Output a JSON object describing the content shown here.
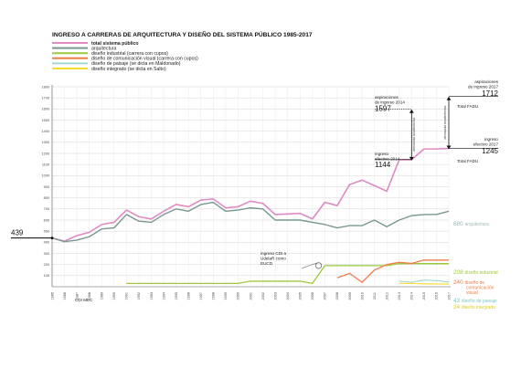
{
  "chart_data": {
    "type": "line",
    "title": "INGRESO A CARRERAS DE ARQUITECTURA Y DISEÑO DEL SISTEMA PÚBLICO 1985-2017",
    "xlabel": "",
    "ylabel": "",
    "ylim": [
      0,
      1800
    ],
    "yticks": [
      100,
      200,
      300,
      400,
      500,
      600,
      700,
      800,
      900,
      1000,
      1100,
      1200,
      1300,
      1400,
      1500,
      1600,
      1700,
      1800
    ],
    "x": [
      "1985",
      "1986",
      "1987",
      "1988",
      "1989",
      "1990",
      "1991",
      "1992",
      "1993",
      "1994",
      "1995",
      "1996",
      "1997",
      "1998",
      "1999",
      "2000",
      "2001",
      "2002",
      "2003",
      "2004",
      "2005",
      "2006",
      "2007",
      "2008",
      "2009",
      "2010",
      "2011",
      "2012",
      "2013",
      "2014",
      "2015",
      "2016",
      "2017"
    ],
    "grid": true,
    "legend_position": "top-left",
    "series": [
      {
        "name": "total sistema público",
        "color": "#e089c3",
        "width": 1.6,
        "values": [
          439,
          410,
          460,
          490,
          560,
          580,
          690,
          630,
          610,
          680,
          740,
          720,
          780,
          790,
          710,
          720,
          770,
          750,
          650,
          655,
          660,
          610,
          760,
          730,
          920,
          960,
          910,
          860,
          1144,
          1144,
          1240,
          1240,
          1245
        ]
      },
      {
        "name": "arquitectura",
        "color": "#7a9692",
        "width": 1.4,
        "values": [
          439,
          405,
          420,
          450,
          520,
          530,
          650,
          590,
          580,
          650,
          700,
          680,
          740,
          760,
          680,
          690,
          710,
          700,
          600,
          600,
          600,
          580,
          560,
          530,
          550,
          550,
          600,
          540,
          600,
          640,
          650,
          650,
          680
        ]
      },
      {
        "name": "diseño industrial (carrera con cupos)",
        "color": "#9cc93b",
        "width": 1.3,
        "values": [
          null,
          null,
          null,
          null,
          null,
          null,
          30,
          30,
          30,
          30,
          30,
          30,
          30,
          30,
          30,
          30,
          50,
          50,
          50,
          50,
          50,
          30,
          190,
          190,
          190,
          190,
          190,
          190,
          208,
          208,
          208,
          208,
          208
        ]
      },
      {
        "name": "diseño de comunicación visual (carrera con cupos)",
        "color": "#ef7d4a",
        "width": 1.3,
        "values": [
          null,
          null,
          null,
          null,
          null,
          null,
          null,
          null,
          null,
          null,
          null,
          null,
          null,
          null,
          null,
          null,
          null,
          null,
          null,
          null,
          null,
          null,
          null,
          80,
          120,
          40,
          150,
          200,
          220,
          210,
          240,
          240,
          240
        ]
      },
      {
        "name": "diseño de paisaje (se dicta en Maldonado)",
        "color": "#9fd9cf",
        "width": 1.1,
        "values": [
          null,
          null,
          null,
          null,
          null,
          null,
          null,
          null,
          null,
          null,
          null,
          null,
          null,
          null,
          null,
          null,
          null,
          null,
          null,
          null,
          null,
          null,
          null,
          null,
          null,
          null,
          null,
          null,
          50,
          40,
          60,
          55,
          43
        ]
      },
      {
        "name": "diseño integrado (se dicta en Salto)",
        "color": "#f4dd2a",
        "width": 1.1,
        "values": [
          null,
          null,
          null,
          null,
          null,
          null,
          null,
          null,
          null,
          null,
          null,
          null,
          null,
          null,
          null,
          null,
          null,
          null,
          null,
          null,
          null,
          null,
          null,
          null,
          null,
          null,
          null,
          null,
          30,
          30,
          25,
          25,
          24
        ]
      }
    ],
    "annotations": {
      "start_value": "439",
      "cdi_mec": "CDI MEC",
      "cdi_note": [
        "ingreso CDI a",
        "UdelaR como",
        "EUCD"
      ],
      "asp2014_label": [
        "aspiraciones",
        "de ingreso 2014"
      ],
      "asp2014_value": "1597",
      "asp2017_label": [
        "aspiraciones",
        "de ingreso 2017"
      ],
      "asp2017_value": "1712",
      "total_fadu_top": "Total FADU",
      "ing2014_label": [
        "ingreso",
        "efectivo 2014"
      ],
      "ing2014_value": "1144",
      "ing2017_label": [
        "ingreso",
        "efectivo 2017"
      ],
      "ing2017_value": "1245",
      "total_fadu_bottom": "Total FADU",
      "demanda_no_satisfecha": "demanda insatisfecha",
      "demanda_no_satisfecha_2": "demanda insatisfecha"
    },
    "end_labels": [
      {
        "value": "680",
        "text": "arquitectura",
        "color": "#9fbab7"
      },
      {
        "value": "208",
        "text": "diseño industrial",
        "color": "#9cc93b"
      },
      {
        "value": "240",
        "text": [
          "diseño de",
          "comunicación",
          "visual"
        ],
        "color": "#ef7d4a"
      },
      {
        "value": "43",
        "text": "diseño de paisaje",
        "color": "#7fc9bd"
      },
      {
        "value": "24",
        "text": "diseño integrado",
        "color": "#e2c915"
      }
    ]
  }
}
